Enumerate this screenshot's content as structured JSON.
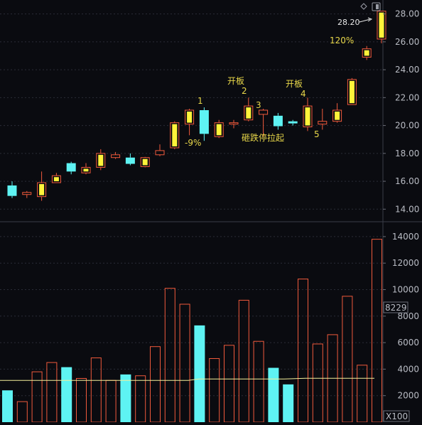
{
  "colors": {
    "background": "#0a0b10",
    "up": "#f05a3c",
    "up_fill": "#fff33a",
    "down": "#5ef3f3",
    "ma": "#f4ef9a",
    "grid": "#2a2d37",
    "axis_text": "#b9bcc4",
    "annotation": "#e9d84a"
  },
  "controls": {
    "diamond_icon": "diamond-icon",
    "toggle_icon": "panel-toggle-icon"
  },
  "price_axis": {
    "ticks": [
      "28.00",
      "26.00",
      "24.00",
      "22.00",
      "20.00",
      "18.00",
      "16.00",
      "14.00"
    ]
  },
  "volume_axis": {
    "ticks": [
      "14000",
      "12000",
      "10000",
      "8000",
      "6000",
      "4000",
      "2000"
    ],
    "current_value": "8229",
    "unit": "X100"
  },
  "annotations": {
    "last_price": "28.20",
    "pct": "120%",
    "n1": "1",
    "n1_pct": "-9%",
    "n2_label": "开板",
    "n2": "2",
    "n3": "3",
    "n3_label": "砸跌停拉起",
    "n4_label": "开板",
    "n4": "4",
    "n5": "5"
  },
  "chart_data": {
    "type": "candlestick",
    "y_range": [
      13.2,
      29.0
    ],
    "volume_range": [
      0,
      14800
    ],
    "volume_ma": 3150,
    "candles": [
      {
        "open": 15.7,
        "close": 14.95,
        "high": 16.0,
        "low": 14.8,
        "dir": "down",
        "volume": 2400
      },
      {
        "open": 15.05,
        "close": 15.2,
        "high": 15.3,
        "low": 14.8,
        "dir": "up",
        "volume": 1550
      },
      {
        "open": 14.9,
        "close": 15.9,
        "high": 16.7,
        "low": 14.6,
        "dir": "up",
        "volume": 3800
      },
      {
        "open": 15.9,
        "close": 16.4,
        "high": 16.6,
        "low": 15.9,
        "dir": "up",
        "volume": 4500
      },
      {
        "open": 17.3,
        "close": 16.7,
        "high": 17.4,
        "low": 16.5,
        "dir": "down",
        "volume": 4150
      },
      {
        "open": 16.6,
        "close": 17.0,
        "high": 17.3,
        "low": 16.5,
        "dir": "up",
        "volume": 3300
      },
      {
        "open": 17.0,
        "close": 18.0,
        "high": 18.3,
        "low": 16.8,
        "dir": "up",
        "volume": 4850
      },
      {
        "open": 17.7,
        "close": 17.9,
        "high": 18.1,
        "low": 17.6,
        "dir": "up",
        "volume": 3150
      },
      {
        "open": 17.7,
        "close": 17.25,
        "high": 18.0,
        "low": 17.15,
        "dir": "down",
        "volume": 3600
      },
      {
        "open": 17.05,
        "close": 17.7,
        "high": 17.75,
        "low": 17.0,
        "dir": "up",
        "volume": 3500
      },
      {
        "open": 17.9,
        "close": 18.2,
        "high": 18.65,
        "low": 17.8,
        "dir": "up",
        "volume": 5700
      },
      {
        "open": 18.4,
        "close": 20.2,
        "high": 20.3,
        "low": 18.3,
        "dir": "up",
        "volume": 10100
      },
      {
        "open": 20.1,
        "close": 21.1,
        "high": 21.2,
        "low": 19.3,
        "dir": "up",
        "volume": 8900
      },
      {
        "open": 21.1,
        "close": 19.4,
        "high": 21.3,
        "low": 18.9,
        "dir": "down",
        "volume": 7300
      },
      {
        "open": 19.2,
        "close": 20.2,
        "high": 20.4,
        "low": 19.1,
        "dir": "up",
        "volume": 4800
      },
      {
        "open": 20.1,
        "close": 20.2,
        "high": 20.4,
        "low": 19.8,
        "dir": "up",
        "volume": 5800
      },
      {
        "open": 20.4,
        "close": 21.4,
        "high": 22.0,
        "low": 20.3,
        "dir": "up",
        "volume": 9200
      },
      {
        "open": 20.8,
        "close": 21.1,
        "high": 21.2,
        "low": 19.2,
        "dir": "up",
        "volume": 6100
      },
      {
        "open": 20.7,
        "close": 19.95,
        "high": 20.9,
        "low": 19.7,
        "dir": "down",
        "volume": 4100
      },
      {
        "open": 20.3,
        "close": 20.15,
        "high": 20.4,
        "low": 20.0,
        "dir": "down",
        "volume": 2850
      },
      {
        "open": 19.9,
        "close": 21.4,
        "high": 22.0,
        "low": 19.6,
        "dir": "up",
        "volume": 10800
      },
      {
        "open": 20.1,
        "close": 20.3,
        "high": 21.2,
        "low": 19.7,
        "dir": "up",
        "volume": 5900
      },
      {
        "open": 20.3,
        "close": 21.1,
        "high": 21.6,
        "low": 20.2,
        "dir": "up",
        "volume": 6600
      },
      {
        "open": 21.5,
        "close": 23.3,
        "high": 23.4,
        "low": 21.5,
        "dir": "up",
        "volume": 9500
      },
      {
        "open": 24.9,
        "close": 25.5,
        "high": 25.7,
        "low": 24.7,
        "dir": "up",
        "volume": 4300
      },
      {
        "open": 26.2,
        "close": 28.2,
        "high": 28.2,
        "low": 25.9,
        "dir": "up",
        "volume": 13800
      }
    ]
  }
}
